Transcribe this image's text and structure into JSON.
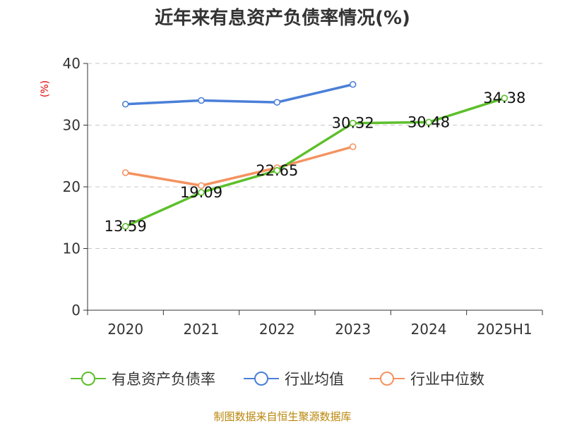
{
  "chart_data": {
    "type": "line",
    "title": "近年来有息资产负债率情况(%)",
    "ylabel": "(%)",
    "xlabel": "",
    "categories": [
      "2020",
      "2021",
      "2022",
      "2023",
      "2024",
      "2025H1"
    ],
    "ylim": [
      0,
      40
    ],
    "yticks": [
      0,
      10,
      20,
      30,
      40
    ],
    "grid": "horizontal dashed",
    "legend_position": "bottom",
    "series": [
      {
        "name": "有息资产负债率",
        "color": "#5dbf2b",
        "values": [
          13.59,
          19.09,
          22.65,
          30.32,
          30.48,
          34.38
        ],
        "labels": [
          "13.59",
          "19.09",
          "22.65",
          "30.32",
          "30.48",
          "34.38"
        ]
      },
      {
        "name": "行业均值",
        "color": "#4a7fd8",
        "values": [
          33.4,
          34.0,
          33.7,
          36.6,
          null,
          null
        ]
      },
      {
        "name": "行业中位数",
        "color": "#f4925f",
        "values": [
          22.3,
          20.2,
          23.1,
          26.5,
          null,
          null
        ]
      }
    ],
    "source": "制图数据来自恒生聚源数据库"
  }
}
